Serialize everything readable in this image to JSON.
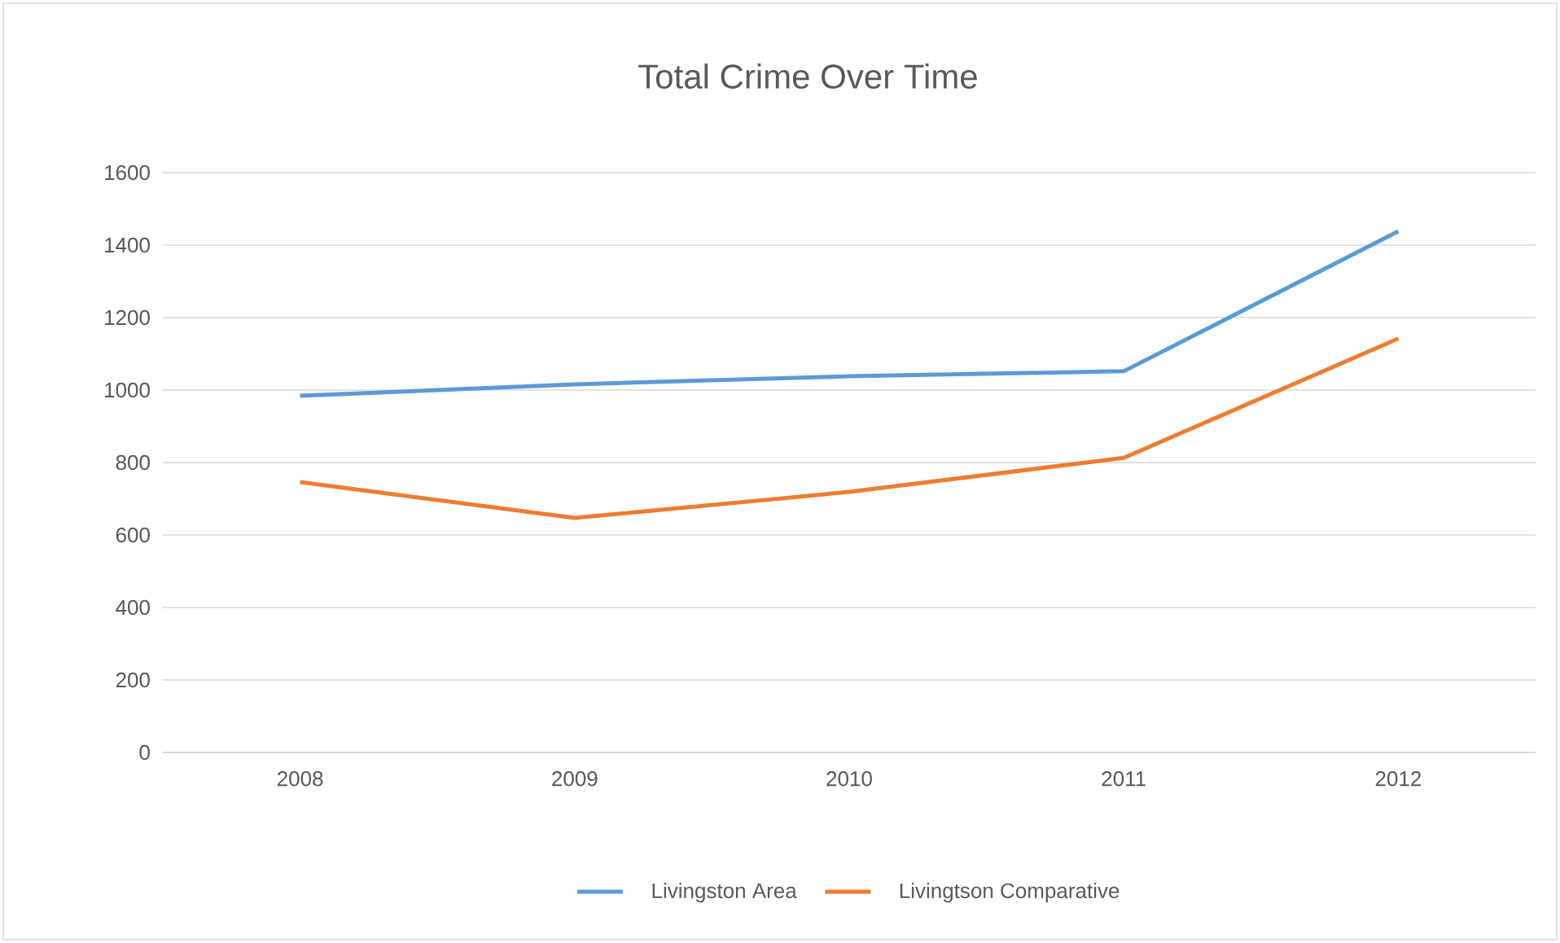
{
  "chart_data": {
    "type": "line",
    "title": "Total Crime Over Time",
    "categories": [
      "2008",
      "2009",
      "2010",
      "2011",
      "2012"
    ],
    "series": [
      {
        "name": "Livingston Area",
        "color": "#5b9bd5",
        "values": [
          984,
          1016,
          1038,
          1052,
          1438
        ]
      },
      {
        "name": "Livingtson Comparative",
        "color": "#ed7d31",
        "values": [
          746,
          647,
          719,
          813,
          1142
        ]
      }
    ],
    "ylim": [
      0,
      1600
    ],
    "yticks": [
      0,
      200,
      400,
      600,
      800,
      1000,
      1200,
      1400,
      1600
    ],
    "grid": "y",
    "legend": "bottom",
    "marker": "none",
    "line_style": "solid"
  }
}
